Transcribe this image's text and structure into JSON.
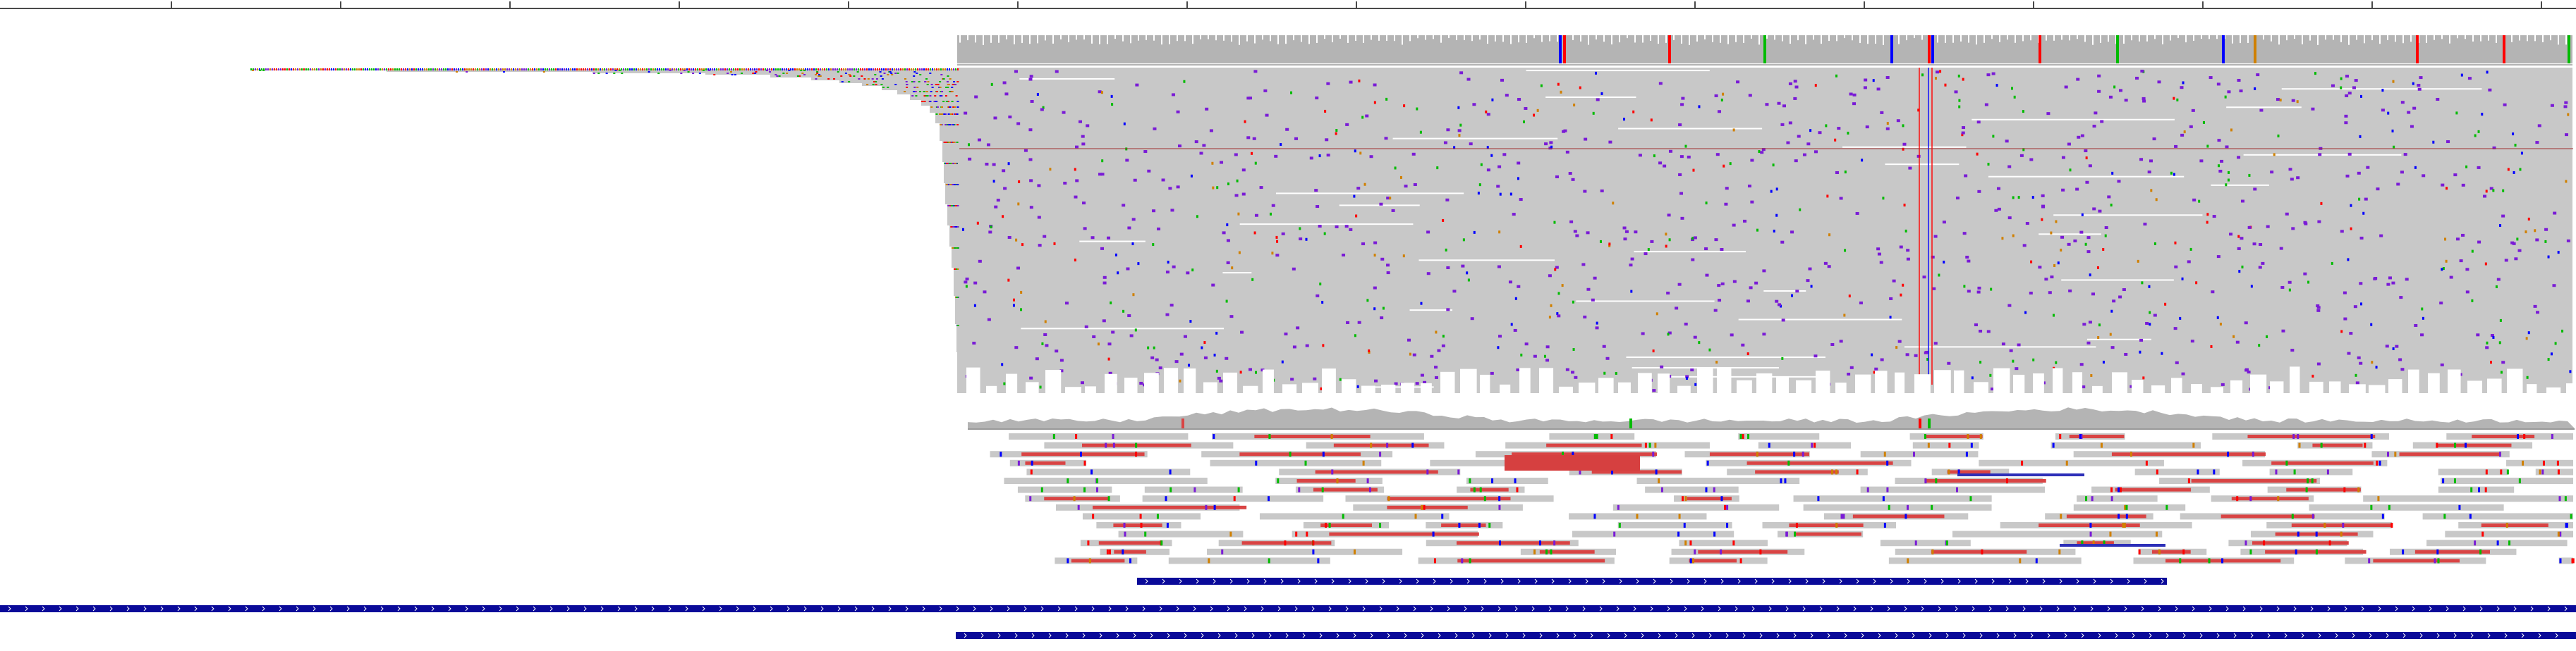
{
  "viewer": {
    "type": "genome-alignment-browser",
    "ruler": {
      "tick_count": 15
    },
    "tracks": [
      {
        "name": "alignment-track-1",
        "kind": "alignment",
        "features": [
          "coverage",
          "reads",
          "mismatches"
        ]
      },
      {
        "name": "alignment-track-2",
        "kind": "alignment",
        "features": [
          "coverage",
          "reads",
          "split-reads"
        ]
      },
      {
        "name": "annotation-track",
        "kind": "gene-annotation",
        "feature_count": 3
      }
    ]
  },
  "colors": {
    "background": "#ffffff",
    "ruler": "#4a4a4a",
    "coverage": "#b4b4b4",
    "read": "#c8c8c8",
    "mismatch_A": "#00bb00",
    "mismatch_C": "#0000ff",
    "mismatch_G": "#d08000",
    "mismatch_T": "#ff0000",
    "insertion": "#7a1bd6",
    "deletion": "#d94444",
    "gap_line": "#2d2fb8",
    "feature": "#0a0a99"
  },
  "icons": {
    "strand": "chevron-right-icon"
  }
}
